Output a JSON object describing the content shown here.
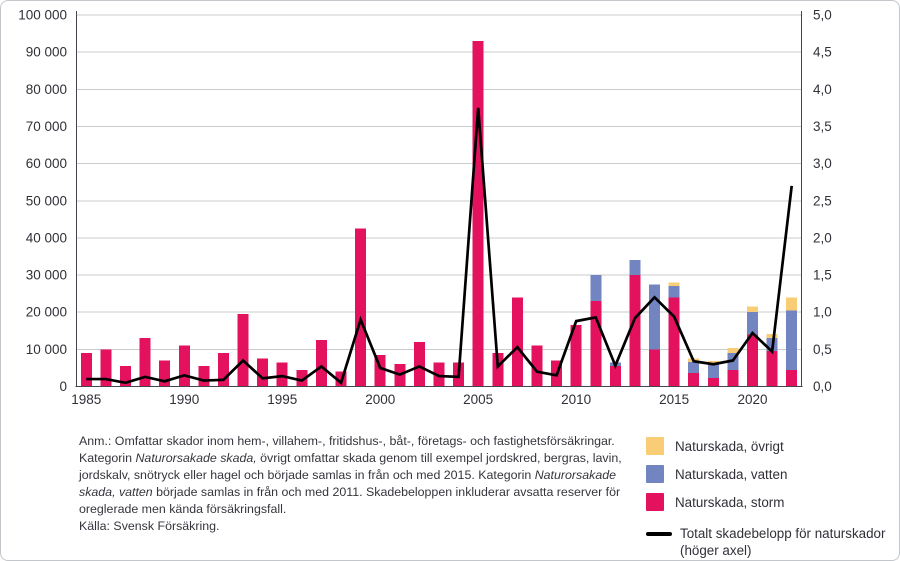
{
  "chart_data": {
    "type": "bar",
    "subtype": "stacked-bars-with-line-overlay",
    "years": [
      1985,
      1986,
      1987,
      1988,
      1989,
      1990,
      1991,
      1992,
      1993,
      1994,
      1995,
      1996,
      1997,
      1998,
      1999,
      2000,
      2001,
      2002,
      2003,
      2004,
      2005,
      2006,
      2007,
      2008,
      2009,
      2010,
      2011,
      2012,
      2013,
      2014,
      2015,
      2016,
      2017,
      2018,
      2019,
      2020,
      2021
    ],
    "series": [
      {
        "name": "Naturskada, storm",
        "type": "bar",
        "axis": "left",
        "color": "#e3115e",
        "values": [
          9000,
          10000,
          5500,
          13000,
          7000,
          11000,
          5500,
          9000,
          19500,
          7500,
          6500,
          4500,
          12500,
          4000,
          42500,
          8500,
          6000,
          12000,
          6500,
          6500,
          93000,
          9000,
          24000,
          11000,
          7000,
          16500,
          23000,
          5500,
          30000,
          10000,
          24000,
          3600,
          2300,
          4500,
          14000,
          9500,
          4500
        ]
      },
      {
        "name": "Naturskada, vatten",
        "type": "bar",
        "axis": "left",
        "color": "#7385c1",
        "values": [
          0,
          0,
          0,
          0,
          0,
          0,
          0,
          0,
          0,
          0,
          0,
          0,
          0,
          0,
          0,
          0,
          0,
          0,
          0,
          0,
          0,
          0,
          0,
          0,
          0,
          0,
          7000,
          1000,
          4000,
          17500,
          3000,
          3000,
          3600,
          4500,
          6000,
          3500,
          16000
        ]
      },
      {
        "name": "Naturskada, övrigt",
        "type": "bar",
        "axis": "left",
        "color": "#f8cd75",
        "values": [
          0,
          0,
          0,
          0,
          0,
          0,
          0,
          0,
          0,
          0,
          0,
          0,
          0,
          0,
          0,
          0,
          0,
          0,
          0,
          0,
          0,
          0,
          0,
          0,
          0,
          0,
          0,
          0,
          0,
          0,
          1000,
          900,
          900,
          1300,
          1500,
          1100,
          3500
        ]
      },
      {
        "name": "Totalt skadebelopp för naturskador (höger axel)",
        "type": "line",
        "axis": "right",
        "color": "#000000",
        "values": [
          0.1,
          0.1,
          0.05,
          0.13,
          0.07,
          0.15,
          0.08,
          0.09,
          0.35,
          0.11,
          0.14,
          0.08,
          0.27,
          0.05,
          0.9,
          0.25,
          0.16,
          0.27,
          0.14,
          0.13,
          3.75,
          0.27,
          0.53,
          0.2,
          0.15,
          0.88,
          0.93,
          0.28,
          0.92,
          1.2,
          0.94,
          0.34,
          0.3,
          0.35,
          0.72,
          0.47,
          2.7
        ]
      }
    ],
    "left_axis": {
      "min": 0,
      "max": 100000,
      "step": 10000,
      "tick_labels": [
        "0",
        "10 000",
        "20 000",
        "30 000",
        "40 000",
        "50 000",
        "60 000",
        "70 000",
        "80 000",
        "90 000",
        "100 000"
      ]
    },
    "right_axis": {
      "min": 0,
      "max": 5,
      "step": 0.5,
      "tick_labels": [
        "0,0",
        "0,5",
        "1,0",
        "1,5",
        "2,0",
        "2,5",
        "3,0",
        "3,5",
        "4,0",
        "4,5",
        "5,0"
      ]
    },
    "x_tick_labels": [
      "1985",
      "1990",
      "1995",
      "2000",
      "2005",
      "2010",
      "2015",
      "2020"
    ],
    "x_tick_indices": [
      0,
      5,
      10,
      15,
      20,
      25,
      30,
      34
    ],
    "grid": true,
    "grid_color": "#c9ccce",
    "axis_color": "#45454f",
    "legend_position": "bottom-right"
  },
  "legend": {
    "items": [
      {
        "label": "Naturskada, övrigt",
        "color": "#f8cd75"
      },
      {
        "label": "Naturskada, vatten",
        "color": "#7385c1"
      },
      {
        "label": "Naturskada, storm",
        "color": "#e3115e"
      }
    ],
    "line_item": {
      "label": "Totalt skadebelopp för naturskador",
      "label2": "(höger axel)",
      "color": "#000000"
    }
  },
  "footnote": {
    "lines": [
      [
        {
          "t": "Anm.: Omfattar skador inom hem-, villahem-, fritidshus-, båt-, företags- och fastighetsförsäkringar.",
          "i": false
        }
      ],
      [
        {
          "t": "Kategorin ",
          "i": false
        },
        {
          "t": "Naturorsakade skada,",
          "i": true
        },
        {
          "t": " övrigt omfattar skada genom till exempel jordskred, bergras, lavin,",
          "i": false
        }
      ],
      [
        {
          "t": "jordskalv, snötryck eller hagel och började samlas in från och med 2015. Kategorin ",
          "i": false
        },
        {
          "t": "Naturorsakade",
          "i": true
        }
      ],
      [
        {
          "t": "skada, vatten",
          "i": true
        },
        {
          "t": " började samlas in från och med 2011. Skadebeloppen inkluderar avsatta reserver för",
          "i": false
        }
      ],
      [
        {
          "t": "oreglerade men kända försäkringsfall.",
          "i": false
        }
      ],
      [
        {
          "t": "Källa: Svensk Försäkring.",
          "i": false
        }
      ]
    ]
  }
}
